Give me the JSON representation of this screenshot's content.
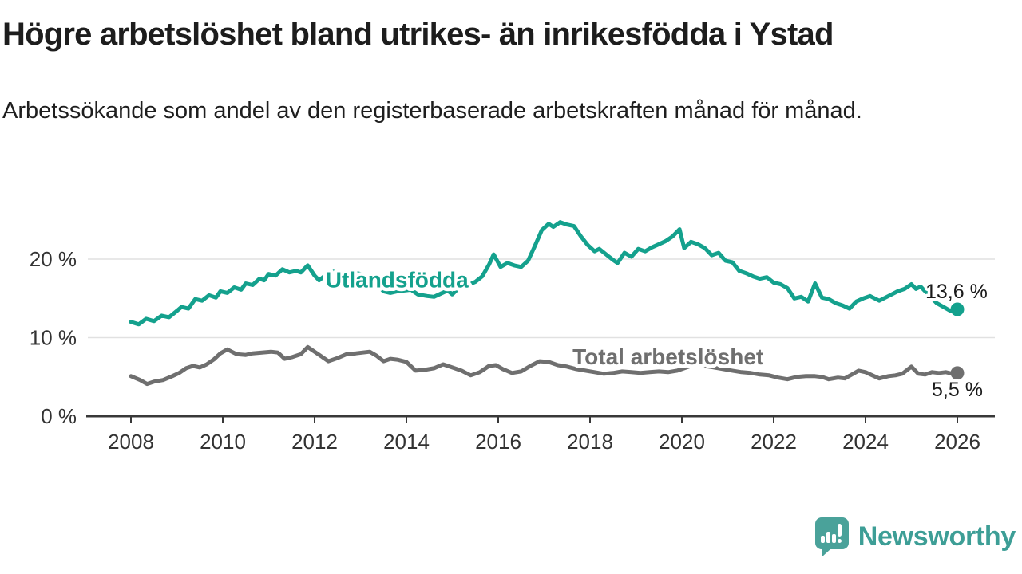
{
  "header": {
    "title": "Högre arbetslöshet bland utrikes- än inrikesfödda i Ystad",
    "subtitle": "Arbetssökande som andel av den registerbaserade arbetskraften månad för månad."
  },
  "chart_data": {
    "type": "line",
    "unit": "%",
    "grid": true,
    "x_axis": {
      "ticks": [
        2008,
        2010,
        2012,
        2014,
        2016,
        2018,
        2020,
        2022,
        2024,
        2026
      ],
      "range": [
        2007.1,
        2026.8
      ]
    },
    "y_axis": {
      "ticks": [
        {
          "value": 0,
          "label": "0 %"
        },
        {
          "value": 10,
          "label": "10 %"
        },
        {
          "value": 20,
          "label": "20 %"
        }
      ],
      "range": [
        0,
        27
      ]
    },
    "colors": {
      "axis": "#383838",
      "grid": "#e1e1e1",
      "value_label": "#1a1a1a"
    },
    "series": [
      {
        "name": "Utlandsfödda",
        "color": "#14a18d",
        "end_label": "13,6 %",
        "end_value": 13.6,
        "inline_label": {
          "text": "Utlandsfödda",
          "year": 2012.24,
          "value": 16.4
        },
        "end_label_offset": {
          "dx": -40,
          "dy": -14
        },
        "points": [
          [
            2008.0,
            12.0
          ],
          [
            2008.17,
            11.7
          ],
          [
            2008.33,
            12.4
          ],
          [
            2008.5,
            12.1
          ],
          [
            2008.67,
            12.8
          ],
          [
            2008.83,
            12.6
          ],
          [
            2009.0,
            13.4
          ],
          [
            2009.1,
            13.9
          ],
          [
            2009.25,
            13.7
          ],
          [
            2009.4,
            14.9
          ],
          [
            2009.55,
            14.7
          ],
          [
            2009.7,
            15.4
          ],
          [
            2009.85,
            15.1
          ],
          [
            2009.95,
            15.9
          ],
          [
            2010.1,
            15.7
          ],
          [
            2010.25,
            16.4
          ],
          [
            2010.4,
            16.1
          ],
          [
            2010.5,
            16.9
          ],
          [
            2010.65,
            16.7
          ],
          [
            2010.8,
            17.5
          ],
          [
            2010.9,
            17.3
          ],
          [
            2011.0,
            18.1
          ],
          [
            2011.15,
            17.9
          ],
          [
            2011.3,
            18.7
          ],
          [
            2011.45,
            18.3
          ],
          [
            2011.6,
            18.5
          ],
          [
            2011.7,
            18.3
          ],
          [
            2011.85,
            19.2
          ],
          [
            2012.0,
            17.9
          ],
          [
            2012.1,
            17.3
          ],
          [
            2012.25,
            18.0
          ],
          [
            2012.4,
            18.4
          ],
          [
            2012.6,
            18.3
          ],
          [
            2012.8,
            18.4
          ],
          [
            2013.0,
            18.1
          ],
          [
            2013.2,
            17.6
          ],
          [
            2013.35,
            16.9
          ],
          [
            2013.5,
            15.9
          ],
          [
            2013.65,
            15.7
          ],
          [
            2013.8,
            15.9
          ],
          [
            2014.1,
            16.1
          ],
          [
            2014.25,
            15.5
          ],
          [
            2014.45,
            15.3
          ],
          [
            2014.6,
            15.2
          ],
          [
            2014.75,
            15.6
          ],
          [
            2014.9,
            16.0
          ],
          [
            2015.0,
            15.5
          ],
          [
            2015.15,
            16.4
          ],
          [
            2015.3,
            16.6
          ],
          [
            2015.5,
            17.1
          ],
          [
            2015.65,
            17.8
          ],
          [
            2015.8,
            19.3
          ],
          [
            2015.9,
            20.6
          ],
          [
            2016.05,
            19.0
          ],
          [
            2016.2,
            19.5
          ],
          [
            2016.35,
            19.2
          ],
          [
            2016.5,
            19.0
          ],
          [
            2016.65,
            19.8
          ],
          [
            2016.8,
            21.7
          ],
          [
            2016.95,
            23.7
          ],
          [
            2017.1,
            24.5
          ],
          [
            2017.2,
            24.1
          ],
          [
            2017.35,
            24.7
          ],
          [
            2017.5,
            24.4
          ],
          [
            2017.65,
            24.2
          ],
          [
            2017.8,
            22.9
          ],
          [
            2017.95,
            21.8
          ],
          [
            2018.1,
            21.0
          ],
          [
            2018.2,
            21.3
          ],
          [
            2018.35,
            20.6
          ],
          [
            2018.5,
            19.9
          ],
          [
            2018.6,
            19.5
          ],
          [
            2018.75,
            20.8
          ],
          [
            2018.9,
            20.3
          ],
          [
            2019.05,
            21.3
          ],
          [
            2019.2,
            21.0
          ],
          [
            2019.35,
            21.5
          ],
          [
            2019.5,
            21.9
          ],
          [
            2019.65,
            22.3
          ],
          [
            2019.8,
            22.9
          ],
          [
            2019.95,
            23.8
          ],
          [
            2020.05,
            21.4
          ],
          [
            2020.2,
            22.2
          ],
          [
            2020.35,
            21.9
          ],
          [
            2020.5,
            21.4
          ],
          [
            2020.65,
            20.5
          ],
          [
            2020.8,
            20.8
          ],
          [
            2020.95,
            19.8
          ],
          [
            2021.1,
            19.6
          ],
          [
            2021.25,
            18.5
          ],
          [
            2021.4,
            18.2
          ],
          [
            2021.55,
            17.8
          ],
          [
            2021.7,
            17.5
          ],
          [
            2021.85,
            17.7
          ],
          [
            2022.0,
            17.0
          ],
          [
            2022.15,
            16.8
          ],
          [
            2022.3,
            16.3
          ],
          [
            2022.45,
            15.0
          ],
          [
            2022.6,
            15.2
          ],
          [
            2022.75,
            14.6
          ],
          [
            2022.9,
            16.9
          ],
          [
            2023.05,
            15.1
          ],
          [
            2023.2,
            14.9
          ],
          [
            2023.35,
            14.4
          ],
          [
            2023.5,
            14.1
          ],
          [
            2023.65,
            13.7
          ],
          [
            2023.8,
            14.6
          ],
          [
            2023.95,
            15.0
          ],
          [
            2024.1,
            15.3
          ],
          [
            2024.3,
            14.7
          ],
          [
            2024.5,
            15.3
          ],
          [
            2024.7,
            15.9
          ],
          [
            2024.85,
            16.2
          ],
          [
            2025.0,
            16.8
          ],
          [
            2025.1,
            16.2
          ],
          [
            2025.2,
            16.5
          ],
          [
            2025.4,
            15.3
          ],
          [
            2025.55,
            14.4
          ],
          [
            2025.7,
            13.9
          ],
          [
            2025.85,
            13.4
          ],
          [
            2026.0,
            13.6
          ]
        ]
      },
      {
        "name": "Total arbetslöshet",
        "color": "#6f6f6f",
        "end_label": "5,5 %",
        "end_value": 5.5,
        "inline_label": {
          "text": "Total arbetslöshet",
          "year": 2017.62,
          "value": 6.6
        },
        "end_label_offset": {
          "dx": -32,
          "dy": 29
        },
        "points": [
          [
            2008.0,
            5.1
          ],
          [
            2008.2,
            4.6
          ],
          [
            2008.35,
            4.1
          ],
          [
            2008.5,
            4.4
          ],
          [
            2008.7,
            4.6
          ],
          [
            2008.9,
            5.1
          ],
          [
            2009.05,
            5.5
          ],
          [
            2009.2,
            6.1
          ],
          [
            2009.35,
            6.4
          ],
          [
            2009.5,
            6.2
          ],
          [
            2009.65,
            6.6
          ],
          [
            2009.8,
            7.2
          ],
          [
            2009.95,
            8.0
          ],
          [
            2010.1,
            8.5
          ],
          [
            2010.3,
            7.9
          ],
          [
            2010.5,
            7.8
          ],
          [
            2010.65,
            8.0
          ],
          [
            2010.85,
            8.1
          ],
          [
            2011.05,
            8.2
          ],
          [
            2011.2,
            8.1
          ],
          [
            2011.35,
            7.3
          ],
          [
            2011.5,
            7.5
          ],
          [
            2011.7,
            7.9
          ],
          [
            2011.85,
            8.8
          ],
          [
            2012.0,
            8.2
          ],
          [
            2012.15,
            7.6
          ],
          [
            2012.3,
            7.0
          ],
          [
            2012.5,
            7.4
          ],
          [
            2012.7,
            7.9
          ],
          [
            2012.9,
            8.0
          ],
          [
            2013.05,
            8.1
          ],
          [
            2013.2,
            8.2
          ],
          [
            2013.35,
            7.7
          ],
          [
            2013.5,
            7.0
          ],
          [
            2013.65,
            7.3
          ],
          [
            2013.8,
            7.2
          ],
          [
            2014.0,
            6.9
          ],
          [
            2014.2,
            5.8
          ],
          [
            2014.4,
            5.9
          ],
          [
            2014.6,
            6.1
          ],
          [
            2014.8,
            6.6
          ],
          [
            2015.0,
            6.2
          ],
          [
            2015.2,
            5.8
          ],
          [
            2015.4,
            5.2
          ],
          [
            2015.6,
            5.6
          ],
          [
            2015.8,
            6.4
          ],
          [
            2015.95,
            6.5
          ],
          [
            2016.1,
            6.0
          ],
          [
            2016.3,
            5.5
          ],
          [
            2016.5,
            5.7
          ],
          [
            2016.7,
            6.4
          ],
          [
            2016.9,
            7.0
          ],
          [
            2017.1,
            6.9
          ],
          [
            2017.3,
            6.5
          ],
          [
            2017.5,
            6.3
          ],
          [
            2017.7,
            6.0
          ],
          [
            2017.9,
            5.8
          ],
          [
            2018.1,
            5.6
          ],
          [
            2018.3,
            5.4
          ],
          [
            2018.5,
            5.5
          ],
          [
            2018.7,
            5.7
          ],
          [
            2018.9,
            5.6
          ],
          [
            2019.1,
            5.5
          ],
          [
            2019.3,
            5.6
          ],
          [
            2019.5,
            5.7
          ],
          [
            2019.7,
            5.6
          ],
          [
            2019.9,
            5.8
          ],
          [
            2020.1,
            6.2
          ],
          [
            2020.3,
            6.6
          ],
          [
            2020.5,
            6.4
          ],
          [
            2020.7,
            6.2
          ],
          [
            2020.9,
            6.0
          ],
          [
            2021.1,
            5.8
          ],
          [
            2021.3,
            5.6
          ],
          [
            2021.5,
            5.5
          ],
          [
            2021.7,
            5.3
          ],
          [
            2021.9,
            5.2
          ],
          [
            2022.1,
            4.9
          ],
          [
            2022.3,
            4.7
          ],
          [
            2022.5,
            5.0
          ],
          [
            2022.7,
            5.1
          ],
          [
            2022.9,
            5.1
          ],
          [
            2023.05,
            5.0
          ],
          [
            2023.2,
            4.7
          ],
          [
            2023.4,
            4.9
          ],
          [
            2023.55,
            4.8
          ],
          [
            2023.7,
            5.3
          ],
          [
            2023.85,
            5.8
          ],
          [
            2024.0,
            5.6
          ],
          [
            2024.15,
            5.2
          ],
          [
            2024.3,
            4.8
          ],
          [
            2024.5,
            5.1
          ],
          [
            2024.65,
            5.2
          ],
          [
            2024.8,
            5.4
          ],
          [
            2025.0,
            6.3
          ],
          [
            2025.15,
            5.4
          ],
          [
            2025.3,
            5.3
          ],
          [
            2025.45,
            5.6
          ],
          [
            2025.6,
            5.5
          ],
          [
            2025.75,
            5.6
          ],
          [
            2025.9,
            5.4
          ],
          [
            2026.0,
            5.5
          ]
        ]
      }
    ]
  },
  "footer": {
    "brand": "Newsworthy",
    "brand_color": "#3d9e96",
    "icon_color": "#4aa29a",
    "icon": "newsworthy-bar-chart-bubble"
  }
}
